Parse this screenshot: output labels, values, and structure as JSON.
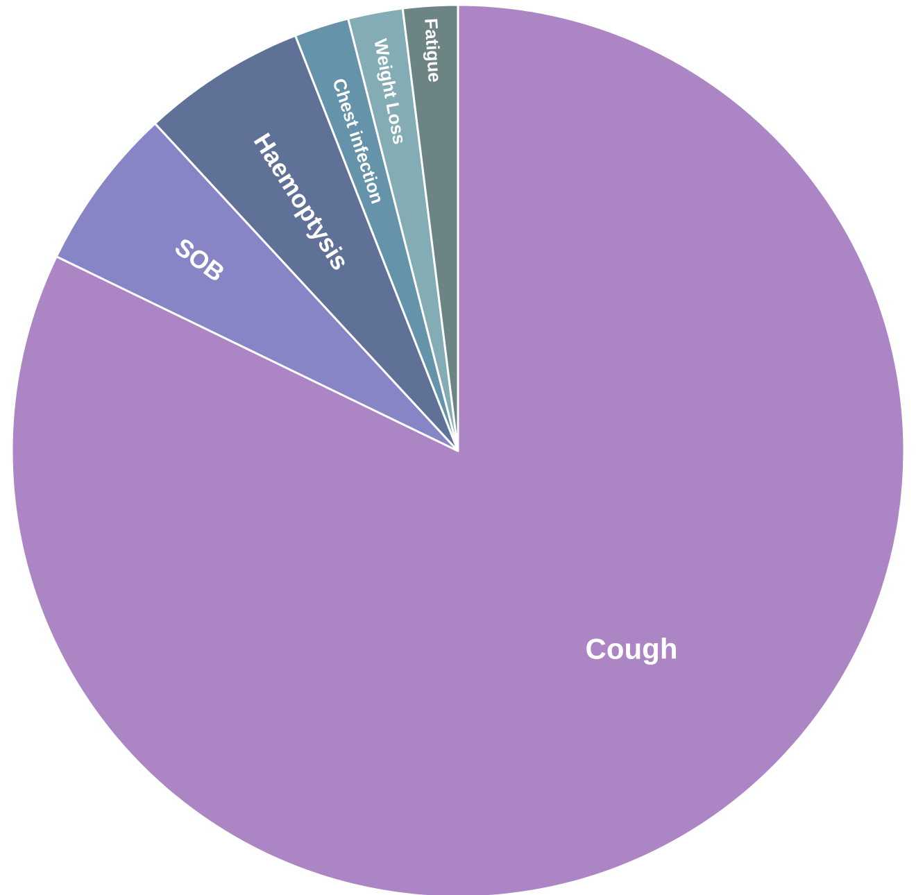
{
  "chart_data": {
    "type": "pie",
    "categories": [
      "Cough",
      "SOB",
      "Haemoptysis",
      "Chest infection",
      "Weight Loss",
      "Fatigue"
    ],
    "values": [
      83,
      6,
      6,
      2,
      2,
      2
    ],
    "colors": [
      "#ac85c5",
      "#8785c5",
      "#5f7196",
      "#6594aa",
      "#84acb4",
      "#6d8484"
    ],
    "start_angle_deg": 0,
    "direction": "clockwise",
    "slice_border_color": "#ffffff",
    "legend": "none",
    "title": ""
  }
}
